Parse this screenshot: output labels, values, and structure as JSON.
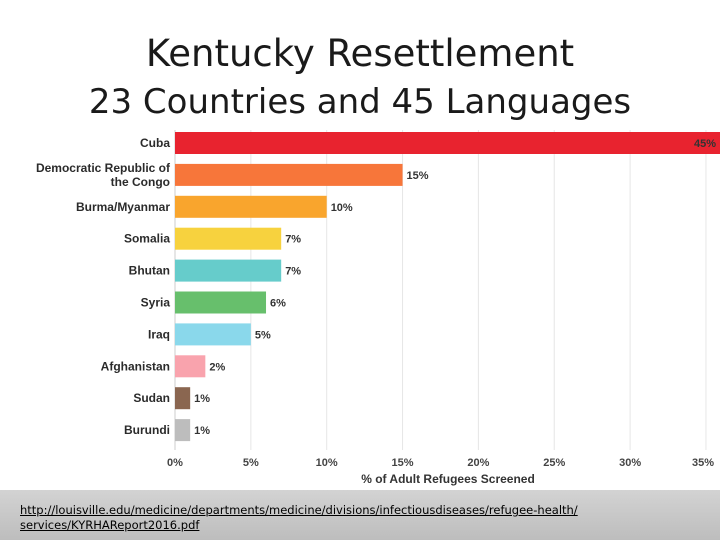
{
  "slide": {
    "title": "Kentucky Resettlement",
    "subtitle": "23 Countries and 45 Languages"
  },
  "footer": {
    "link_text": "http://louisville.edu/medicine/departments/medicine/divisions/infectiousdiseases/refugee-health/services/KYRHAReport2016.pdf"
  },
  "chart_data": {
    "type": "bar",
    "orientation": "horizontal",
    "xlabel": "% of Adult Refugees Screened",
    "xlim": [
      0,
      35
    ],
    "xticks": [
      0,
      5,
      10,
      15,
      20,
      25,
      30,
      35
    ],
    "grid": true,
    "categories": [
      "Cuba",
      "Democratic Republic of the Congo",
      "Burma/Myanmar",
      "Somalia",
      "Bhutan",
      "Syria",
      "Iraq",
      "Afghanistan",
      "Sudan",
      "Burundi"
    ],
    "category_lines": [
      [
        "Cuba"
      ],
      [
        "Democratic Republic of",
        "the Congo"
      ],
      [
        "Burma/Myanmar"
      ],
      [
        "Somalia"
      ],
      [
        "Bhutan"
      ],
      [
        "Syria"
      ],
      [
        "Iraq"
      ],
      [
        "Afghanistan"
      ],
      [
        "Sudan"
      ],
      [
        "Burundi"
      ]
    ],
    "values": [
      45,
      15,
      10,
      7,
      7,
      6,
      5,
      2,
      1,
      1
    ],
    "value_labels": [
      "45%",
      "15%",
      "10%",
      "7%",
      "7%",
      "6%",
      "5%",
      "2%",
      "1%",
      "1%"
    ],
    "colors": [
      "#e8232f",
      "#f7763a",
      "#f9a52d",
      "#f7d23e",
      "#66cccb",
      "#67bf6c",
      "#8ad8eb",
      "#f9a3ad",
      "#8a6650",
      "#bdbdbd"
    ]
  }
}
